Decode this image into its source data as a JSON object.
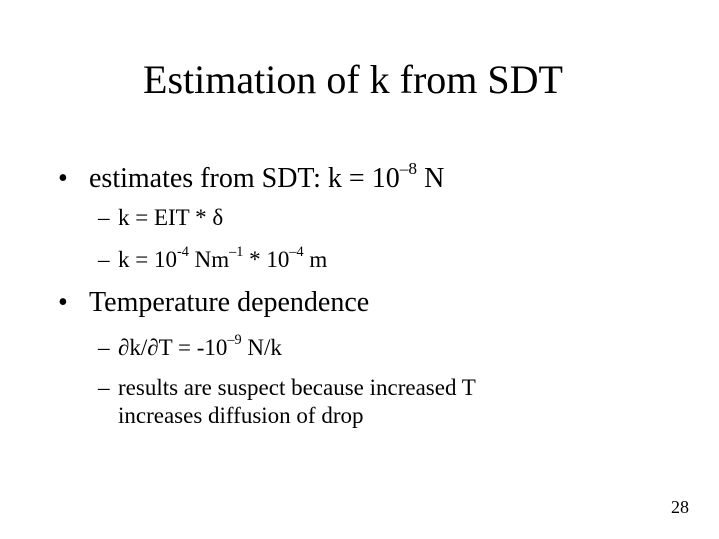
{
  "slide": {
    "title": "Estimation of k from SDT",
    "bullets": [
      {
        "marker": "•",
        "parts": [
          "estimates from SDT:  k = 10",
          "–8",
          " N"
        ],
        "subitems": [
          {
            "marker": "–",
            "parts": [
              "k = EIT * δ"
            ]
          },
          {
            "marker": "–",
            "parts": [
              "k = 10",
              "-4",
              " Nm",
              "–1",
              " * 10",
              "–4",
              " m"
            ]
          }
        ]
      },
      {
        "marker": "•",
        "parts": [
          "Temperature dependence"
        ],
        "subitems": [
          {
            "marker": "–",
            "parts": [
              "∂k/∂T = -10",
              "–9",
              " N/k"
            ]
          },
          {
            "marker": "–",
            "lines": [
              "results are suspect because increased T",
              "increases diffusion of drop"
            ]
          }
        ]
      }
    ],
    "page_number": "28"
  }
}
